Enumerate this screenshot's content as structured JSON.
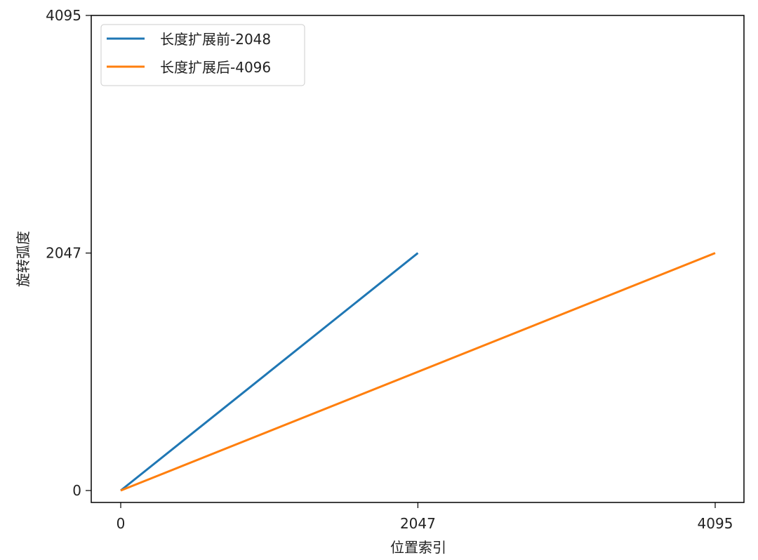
{
  "chart_data": {
    "type": "line",
    "title": "",
    "xlabel": "位置索引",
    "ylabel": "旋转弧度",
    "xlim": [
      -205,
      4095
    ],
    "ylim": [
      -84,
      4095
    ],
    "xticks": [
      0,
      2047,
      4095
    ],
    "yticks": [
      0,
      2047,
      4095
    ],
    "grid": false,
    "legend_position": "top-left",
    "series": [
      {
        "name": "长度扩展前-2048",
        "color": "#1f77b4",
        "x": [
          0,
          2047
        ],
        "y": [
          0,
          2047
        ]
      },
      {
        "name": "长度扩展后-4096",
        "color": "#ff7f0e",
        "x": [
          0,
          4095
        ],
        "y": [
          0,
          2047
        ]
      }
    ]
  }
}
